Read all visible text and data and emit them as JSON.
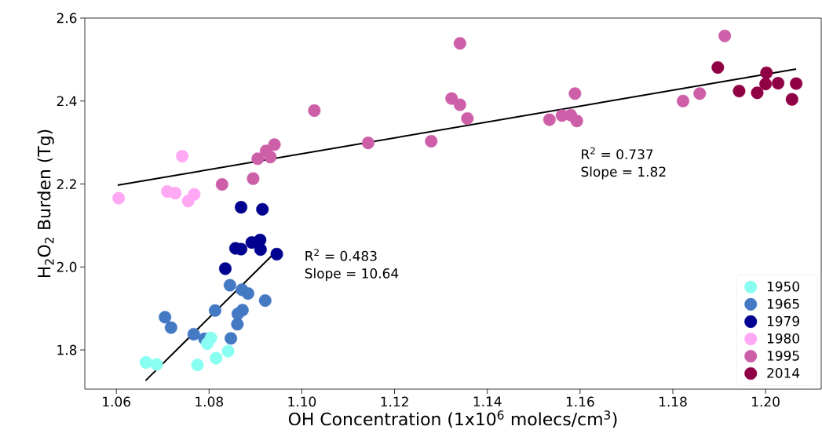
{
  "chart_data": {
    "type": "scatter",
    "xlabel": "OH Concentration (1x10$^{6}$ molecs/cm$^{3}$)",
    "ylabel": "H$_{2}$O$_{2}$ Burden (Tg)",
    "xlim": [
      1.0532,
      1.212
    ],
    "ylim": [
      1.7055,
      2.6
    ],
    "xticks": [
      1.06,
      1.08,
      {
        "value": 1.1,
        "label": "1.10"
      },
      1.12,
      1.14,
      1.16,
      1.18,
      {
        "value": 1.2,
        "label": "1.20"
      }
    ],
    "yticks": [
      1.8,
      {
        "value": 2,
        "label": "2.0"
      },
      2.2,
      2.4,
      2.6
    ],
    "marker": "circle",
    "legend": "bottom right",
    "grid": false,
    "annotations": [
      "R$^{2}$ = 0.737",
      "Slope = 1.82",
      "R$^{2}$ = 0.483",
      "Slope = 10.64"
    ],
    "series": [
      {
        "name": "1950",
        "color": "#88fff0",
        "x": [
          1.0664,
          1.0687,
          1.0775,
          1.0815,
          1.0841,
          1.0796,
          1.0804
        ],
        "values": [
          1.77,
          1.765,
          1.764,
          1.78,
          1.797,
          1.815,
          1.829
        ]
      },
      {
        "name": "1965",
        "color": "#4479c4",
        "x": [
          1.0767,
          1.079,
          1.0847,
          1.0861,
          1.0862,
          1.0872,
          1.0813,
          1.0705,
          1.0718,
          1.0921,
          1.0884,
          1.0871,
          1.0845
        ],
        "values": [
          1.838,
          1.827,
          1.828,
          1.862,
          1.887,
          1.896,
          1.895,
          1.879,
          1.854,
          1.919,
          1.936,
          1.945,
          1.956
        ]
      },
      {
        "name": "1979",
        "color": "#000090",
        "x": [
          1.0835,
          1.0946,
          1.0911,
          1.0869,
          1.0857,
          1.0892,
          1.091,
          1.0869,
          1.0915
        ],
        "values": [
          1.996,
          2.031,
          2.042,
          2.043,
          2.045,
          2.059,
          2.065,
          2.144,
          2.139
        ]
      },
      {
        "name": "1980",
        "color": "#ffa8f4",
        "x": [
          1.0605,
          1.071,
          1.0727,
          1.0755,
          1.0768,
          1.0742
        ],
        "values": [
          2.166,
          2.182,
          2.178,
          2.159,
          2.175,
          2.267
        ]
      },
      {
        "name": "1995",
        "color": "#cc5fa8",
        "x": [
          1.0828,
          1.0895,
          1.0905,
          1.0923,
          1.0941,
          1.0932,
          1.1027,
          1.1143,
          1.1279,
          1.1323,
          1.1341,
          1.1341,
          1.1357,
          1.1534,
          1.1561,
          1.158,
          1.1589,
          1.1593,
          1.1822,
          1.1858,
          1.1912
        ],
        "values": [
          2.199,
          2.213,
          2.261,
          2.28,
          2.295,
          2.265,
          2.377,
          2.299,
          2.303,
          2.406,
          2.391,
          2.539,
          2.358,
          2.355,
          2.365,
          2.366,
          2.418,
          2.352,
          2.4,
          2.418,
          2.557
        ]
      },
      {
        "name": "2014",
        "color": "#900045",
        "x": [
          1.1897,
          1.1943,
          1.1982,
          1.2002,
          1.2,
          1.2027,
          1.2066,
          1.2057
        ],
        "values": [
          2.481,
          2.424,
          2.42,
          2.468,
          2.441,
          2.443,
          2.442,
          2.404
        ]
      },
      {
        "type": "line",
        "color": "#000000",
        "marker": "none",
        "x": [
          1.0603,
          1.2066
        ],
        "values": [
          2.197,
          2.477
        ]
      },
      {
        "type": "line",
        "color": "#000000",
        "marker": "none",
        "x": [
          1.0663,
          1.0945
        ],
        "values": [
          1.726,
          2.038
        ]
      }
    ]
  }
}
